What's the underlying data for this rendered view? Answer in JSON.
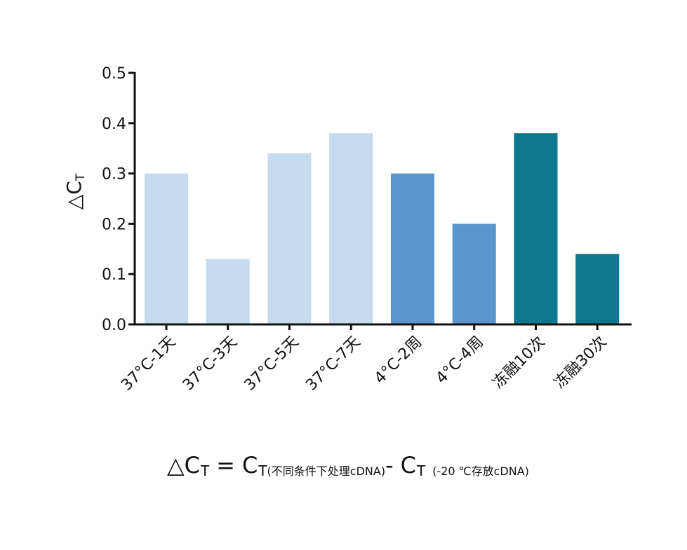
{
  "chart_data": {
    "type": "bar",
    "categories": [
      "37°C-1天",
      "37°C-3天",
      "37°C-5天",
      "37°C-7天",
      "4°C-2周",
      "4°C-4周",
      "冻融10次",
      "冻融30次"
    ],
    "values": [
      0.3,
      0.13,
      0.34,
      0.38,
      0.3,
      0.2,
      0.38,
      0.14
    ],
    "bar_colors": [
      "#c6daf0",
      "#c6daf0",
      "#c6daf0",
      "#c6daf0",
      "#5b97ce",
      "#5b97ce",
      "#0e7890",
      "#0e7890"
    ],
    "ylabel": "△C",
    "ylabel_sub": "T",
    "ylim": [
      0,
      0.5
    ],
    "yticks": [
      "0.0",
      "0.1",
      "0.2",
      "0.3",
      "0.4",
      "0.5"
    ],
    "grid": false,
    "legend": "none"
  },
  "formula": {
    "lhs": "△C",
    "lhs_sub": "T",
    "equals": "=",
    "term1": "C",
    "term1_sub": "T",
    "term1_note": "(不同条件下处理cDNA)",
    "minus": "-",
    "term2": "C",
    "term2_sub": "T",
    "term2_note": "(-20 ℃存放cDNA)"
  }
}
